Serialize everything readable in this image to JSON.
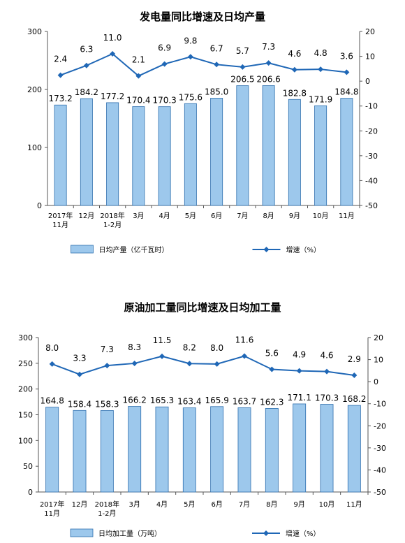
{
  "colors": {
    "bar_fill": "#9dc8ec",
    "bar_stroke": "#2e6fae",
    "line": "#1f67b6",
    "axis": "#555555"
  },
  "chart_data": [
    {
      "type": "bar",
      "title": "发电量同比增速及日均产量",
      "categories": [
        "2017年|11月",
        "12月",
        "2018年|1-2月",
        "3月",
        "4月",
        "5月",
        "6月",
        "7月",
        "8月",
        "9月",
        "10月",
        "11月"
      ],
      "series": [
        {
          "name": "日均产量（亿千瓦时）",
          "type": "bar",
          "axis": "left",
          "values": [
            173.2,
            184.2,
            177.2,
            170.4,
            170.3,
            175.6,
            185.0,
            206.5,
            206.6,
            182.8,
            171.9,
            184.8
          ],
          "labels": [
            "173.2",
            "184.2",
            "177.2",
            "170.4",
            "170.3",
            "175.6",
            "185.0",
            "206.5",
            "206.6",
            "182.8",
            "171.9",
            "184.8"
          ]
        },
        {
          "name": "增速（%）",
          "type": "line",
          "axis": "right",
          "values": [
            2.4,
            6.3,
            11.0,
            2.1,
            6.9,
            9.8,
            6.7,
            5.7,
            7.3,
            4.6,
            4.8,
            3.6
          ],
          "labels": [
            "2.4",
            "6.3",
            "11.0",
            "2.1",
            "6.9",
            "9.8",
            "6.7",
            "5.7",
            "7.3",
            "4.6",
            "4.8",
            "3.6"
          ]
        }
      ],
      "y_left": {
        "min": 0,
        "max": 300,
        "ticks": [
          0,
          100,
          200,
          300
        ]
      },
      "y_right": {
        "min": -50,
        "max": 20,
        "ticks": [
          20,
          10,
          0,
          -10,
          -20,
          -30,
          -40,
          -50
        ]
      },
      "legend_position": "bottom"
    },
    {
      "type": "bar",
      "title": "原油加工量同比增速及日均加工量",
      "categories": [
        "2017年|11月",
        "12月",
        "2018年|1-2月",
        "3月",
        "4月",
        "5月",
        "6月",
        "7月",
        "8月",
        "9月",
        "10月",
        "11月"
      ],
      "series": [
        {
          "name": "日均加工量（万吨）",
          "type": "bar",
          "axis": "left",
          "values": [
            164.8,
            158.4,
            158.3,
            166.2,
            165.3,
            163.4,
            165.9,
            163.7,
            162.3,
            171.1,
            170.3,
            168.2
          ],
          "labels": [
            "164.8",
            "158.4",
            "158.3",
            "166.2",
            "165.3",
            "163.4",
            "165.9",
            "163.7",
            "162.3",
            "171.1",
            "170.3",
            "168.2"
          ]
        },
        {
          "name": "增速（%）",
          "type": "line",
          "axis": "right",
          "values": [
            8.0,
            3.3,
            7.3,
            8.3,
            11.5,
            8.2,
            8.0,
            11.6,
            5.6,
            4.9,
            4.6,
            2.9
          ],
          "labels": [
            "8.0",
            "3.3",
            "7.3",
            "8.3",
            "11.5",
            "8.2",
            "8.0",
            "11.6",
            "5.6",
            "4.9",
            "4.6",
            "2.9"
          ]
        }
      ],
      "y_left": {
        "min": 0,
        "max": 300,
        "ticks": [
          0,
          50,
          100,
          150,
          200,
          250,
          300
        ]
      },
      "y_right": {
        "min": -50,
        "max": 20,
        "ticks": [
          20,
          10,
          0,
          -10,
          -20,
          -30,
          -40,
          -50
        ]
      },
      "legend_position": "bottom"
    }
  ]
}
